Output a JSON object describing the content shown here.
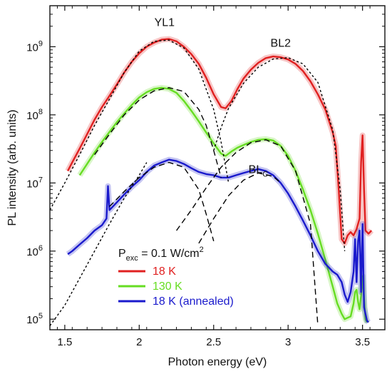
{
  "chart_data": {
    "type": "line",
    "xlabel": "Photon energy (eV)",
    "ylabel": "PL intensity (arb. units)",
    "xlim": [
      1.4,
      3.65
    ],
    "ylim": [
      70000,
      4000000000
    ],
    "yscale": "log",
    "x_ticks": [
      1.5,
      2.0,
      2.5,
      3.0,
      3.5
    ],
    "x_tick_labels": [
      "1.5",
      "2",
      "2.5",
      "3",
      "3.5"
    ],
    "y_ticks": [
      100000,
      1000000,
      10000000,
      100000000,
      1000000000
    ],
    "y_tick_labels": [
      "10^5",
      "10^6",
      "10^7",
      "10^8",
      "10^9"
    ],
    "grid": false,
    "annotations": [
      {
        "text": "YL1",
        "x": 2.17,
        "y": 2000000000
      },
      {
        "text": "BL2",
        "x": 2.95,
        "y": 1000000000
      },
      {
        "text": "BL_C",
        "x": 2.8,
        "y": 14000000
      }
    ],
    "legend": {
      "placement": "bottom-left",
      "title": "P_exc = 0.1 W/cm^2",
      "entries": [
        {
          "label": "18 K",
          "color": "#e02020"
        },
        {
          "label": "130 K",
          "color": "#66dd22"
        },
        {
          "label": "18 K (annealed)",
          "color": "#1a1acc"
        }
      ]
    },
    "series": [
      {
        "name": "18 K",
        "color": "#e02020",
        "x": [
          1.52,
          1.55,
          1.6,
          1.65,
          1.7,
          1.75,
          1.8,
          1.85,
          1.9,
          1.95,
          2.0,
          2.05,
          2.1,
          2.15,
          2.2,
          2.25,
          2.3,
          2.35,
          2.4,
          2.45,
          2.5,
          2.55,
          2.58,
          2.62,
          2.66,
          2.7,
          2.75,
          2.8,
          2.85,
          2.9,
          2.95,
          3.0,
          3.05,
          3.1,
          3.15,
          3.2,
          3.25,
          3.28,
          3.3,
          3.32,
          3.34,
          3.36,
          3.38,
          3.4,
          3.42,
          3.44,
          3.46,
          3.48,
          3.49,
          3.5,
          3.51,
          3.52,
          3.54,
          3.56
        ],
        "y": [
          15000000,
          20000000,
          32000000,
          52000000,
          85000000,
          130000000,
          190000000,
          280000000,
          420000000,
          600000000,
          800000000,
          1000000000,
          1150000000,
          1270000000,
          1300000000,
          1200000000,
          1000000000,
          780000000,
          560000000,
          350000000,
          200000000,
          130000000,
          125000000,
          160000000,
          240000000,
          340000000,
          460000000,
          580000000,
          680000000,
          720000000,
          700000000,
          650000000,
          560000000,
          440000000,
          310000000,
          200000000,
          120000000,
          75000000,
          55000000,
          35000000,
          8000000,
          1500000,
          1300000,
          1700000,
          1900000,
          1700000,
          2100000,
          3000000,
          20000000,
          50000000,
          8000000,
          2000000,
          1800000,
          2000000
        ]
      },
      {
        "name": "130 K",
        "color": "#66dd22",
        "x": [
          1.6,
          1.65,
          1.7,
          1.75,
          1.8,
          1.85,
          1.9,
          1.95,
          2.0,
          2.05,
          2.1,
          2.15,
          2.2,
          2.25,
          2.3,
          2.35,
          2.4,
          2.45,
          2.5,
          2.55,
          2.58,
          2.62,
          2.66,
          2.7,
          2.75,
          2.8,
          2.85,
          2.9,
          2.95,
          3.0,
          3.05,
          3.1,
          3.15,
          3.2,
          3.25,
          3.3,
          3.33,
          3.36,
          3.38,
          3.4,
          3.42,
          3.44,
          3.45,
          3.46,
          3.47,
          3.48,
          3.49,
          3.5,
          3.51,
          3.52,
          3.53
        ],
        "y": [
          13000000,
          19000000,
          28000000,
          40000000,
          56000000,
          78000000,
          105000000,
          140000000,
          180000000,
          215000000,
          240000000,
          250000000,
          240000000,
          210000000,
          160000000,
          115000000,
          80000000,
          55000000,
          38000000,
          27000000,
          25000000,
          29000000,
          33000000,
          36000000,
          40000000,
          43000000,
          44000000,
          42000000,
          35000000,
          25000000,
          15000000,
          8000000,
          4000000,
          1800000,
          750000,
          300000,
          170000,
          120000,
          100000,
          105000,
          110000,
          170000,
          250000,
          270000,
          180000,
          140000,
          220000,
          430000,
          200000,
          100000,
          90000
        ]
      },
      {
        "name": "18 K (annealed)",
        "color": "#1a1acc",
        "x": [
          1.52,
          1.55,
          1.6,
          1.65,
          1.7,
          1.75,
          1.78,
          1.79,
          1.8,
          1.85,
          1.9,
          1.95,
          2.0,
          2.05,
          2.1,
          2.15,
          2.2,
          2.25,
          2.3,
          2.35,
          2.4,
          2.45,
          2.5,
          2.55,
          2.6,
          2.65,
          2.7,
          2.75,
          2.8,
          2.85,
          2.9,
          2.95,
          3.0,
          3.05,
          3.1,
          3.15,
          3.2,
          3.25,
          3.3,
          3.33,
          3.36,
          3.38,
          3.4,
          3.42,
          3.44,
          3.45,
          3.46,
          3.47,
          3.48,
          3.49,
          3.5,
          3.51,
          3.52,
          3.53,
          3.54
        ],
        "y": [
          900000,
          1000000,
          1250000,
          1550000,
          2000000,
          2400000,
          3000000,
          9000000,
          4000000,
          5200000,
          6800000,
          8800000,
          11000000,
          14500000,
          18000000,
          20000000,
          22000000,
          21000000,
          19000000,
          16500000,
          14500000,
          13500000,
          13000000,
          12000000,
          12000000,
          13000000,
          14000000,
          15000000,
          16000000,
          15000000,
          13000000,
          10000000,
          7000000,
          4500000,
          2800000,
          1700000,
          1000000,
          650000,
          500000,
          450000,
          350000,
          230000,
          180000,
          250000,
          500000,
          1500000,
          350000,
          1400000,
          2000000,
          250000,
          2500000,
          150000,
          120000,
          95000,
          90000
        ]
      },
      {
        "name": "",
        "style": "dotted",
        "color": "#000000",
        "x": [
          1.4,
          1.5,
          1.6,
          1.7,
          1.8,
          1.9,
          2.0,
          2.1,
          2.2,
          2.3,
          2.4,
          2.5,
          2.55,
          2.6
        ],
        "y": [
          4000000,
          10000000,
          26000000,
          70000000,
          170000000,
          420000000,
          860000000,
          1200000000,
          1250000000,
          960000000,
          470000000,
          120000000,
          40000000,
          10000000
        ]
      },
      {
        "name": "",
        "style": "dotted",
        "color": "#000000",
        "x": [
          2.5,
          2.55,
          2.6,
          2.7,
          2.8,
          2.9,
          3.0,
          3.1,
          3.2,
          3.3,
          3.35,
          3.38
        ],
        "y": [
          30000000,
          65000000,
          125000000,
          290000000,
          500000000,
          660000000,
          690000000,
          560000000,
          300000000,
          60000000,
          8000000,
          1000000
        ]
      },
      {
        "name": "",
        "style": "dotted",
        "color": "#000000",
        "x": [
          1.4,
          1.5,
          1.6,
          1.7,
          1.8,
          1.9,
          2.0,
          2.05
        ],
        "y": [
          80000,
          160000,
          400000,
          1000000,
          2500000,
          6000000,
          13000000,
          20000000
        ]
      },
      {
        "name": "",
        "style": "dashed",
        "color": "#000000",
        "x": [
          1.7,
          1.8,
          1.9,
          2.0,
          2.1,
          2.2,
          2.3,
          2.4,
          2.45,
          2.5,
          2.55
        ],
        "y": [
          26000000,
          52000000,
          100000000,
          165000000,
          225000000,
          250000000,
          220000000,
          120000000,
          70000000,
          30000000,
          12000000
        ]
      },
      {
        "name": "",
        "style": "dashed",
        "color": "#000000",
        "x": [
          2.25,
          2.35,
          2.45,
          2.55,
          2.65,
          2.75,
          2.85,
          2.95,
          3.05,
          3.15,
          3.2
        ],
        "y": [
          2000000,
          4000000,
          8500000,
          17000000,
          28000000,
          39000000,
          43000000,
          35000000,
          15000000,
          2500000,
          80000
        ]
      },
      {
        "name": "",
        "style": "dashed",
        "color": "#000000",
        "x": [
          1.8,
          1.9,
          2.0,
          2.1,
          2.2,
          2.3,
          2.4,
          2.45,
          2.5
        ],
        "y": [
          4500000,
          7500000,
          12000000,
          17000000,
          20000000,
          17000000,
          8000000,
          3500000,
          1400000
        ]
      },
      {
        "name": "",
        "style": "dashed",
        "color": "#000000",
        "x": [
          2.4,
          2.5,
          2.6,
          2.7,
          2.8,
          2.9,
          2.95
        ],
        "y": [
          1300000,
          3000000,
          6500000,
          11000000,
          14000000,
          12500000,
          10000000
        ]
      }
    ]
  }
}
